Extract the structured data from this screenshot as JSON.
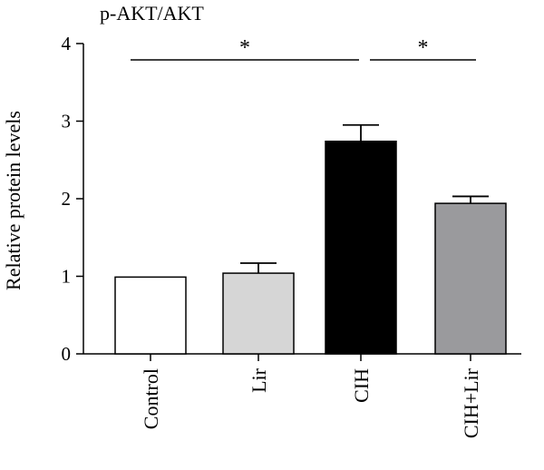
{
  "chart_data": {
    "type": "bar",
    "title": "p-AKT/AKT",
    "xlabel": "",
    "ylabel": "Relative protein levels",
    "ylim": [
      0,
      4
    ],
    "yticks": [
      "0",
      "1",
      "2",
      "3",
      "4"
    ],
    "grid": false,
    "categories": [
      "Control",
      "Lir",
      "CIH",
      "CIH+Lir"
    ],
    "values": [
      0.99,
      1.04,
      2.74,
      1.94
    ],
    "errors": [
      0,
      0.13,
      0.21,
      0.09
    ],
    "bar_colors": [
      "#ffffff",
      "#d6d6d6",
      "#000000",
      "#9a9a9d"
    ],
    "significance": [
      {
        "from": "Control",
        "to": "CIH",
        "label": "*"
      },
      {
        "from": "CIH",
        "to": "CIH+Lir",
        "label": "*"
      }
    ]
  }
}
